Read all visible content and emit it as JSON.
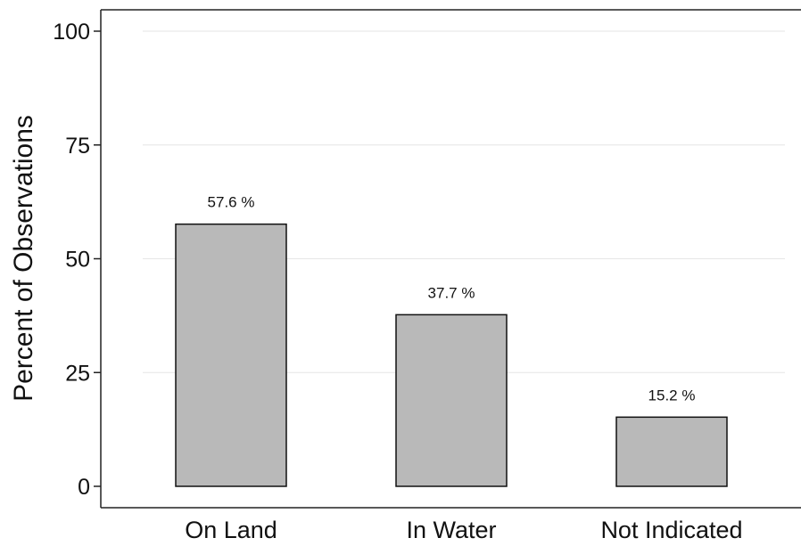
{
  "chart_data": {
    "type": "bar",
    "title": "",
    "xlabel": "",
    "ylabel": "Percent of Observations",
    "categories": [
      "On Land",
      "In Water",
      "Not Indicated"
    ],
    "values": [
      57.6,
      37.7,
      15.2
    ],
    "data_labels": [
      "57.6 %",
      "37.7 %",
      "15.2 %"
    ],
    "ylim": [
      0,
      100
    ],
    "yticks": [
      0,
      25,
      50,
      75,
      100
    ],
    "ytick_labels": [
      "0",
      "25",
      "50",
      "75",
      "100"
    ],
    "grid": true,
    "legend": "none",
    "colors": {
      "bar_fill": "#b9b9b9",
      "bar_stroke": "#111111",
      "axis": "#222222",
      "grid": "#e6e6e6"
    }
  }
}
